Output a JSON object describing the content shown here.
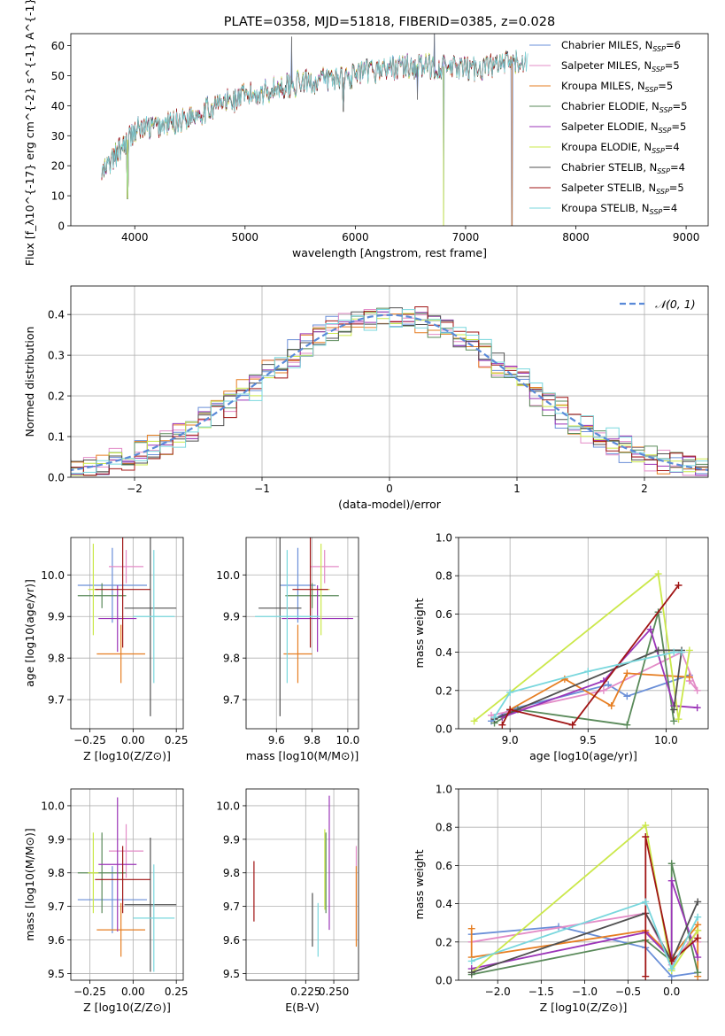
{
  "colors": {
    "Chabrier MILES": "#6a8fd8",
    "Salpeter MILES": "#e38cc7",
    "Kroupa MILES": "#e67e22",
    "Chabrier ELODIE": "#5a8a5a",
    "Salpeter ELODIE": "#9b35b8",
    "Kroupa ELODIE": "#cbe84a",
    "Chabrier STELIB": "#505050",
    "Salpeter STELIB": "#a01515",
    "Kroupa STELIB": "#79d7dd"
  },
  "chart_data": [
    {
      "id": "spectrum",
      "type": "line",
      "title": "PLATE=0358, MJD=51818, FIBERID=0385, z=0.028",
      "xlabel": "wavelength [Angstrom, rest frame]",
      "ylabel": "Flux [f_λ10^{-17} erg cm^{-2} s^{-1} A^{-1}]",
      "xlim": [
        3420,
        9200
      ],
      "ylim": [
        0,
        64
      ],
      "xticks": [
        4000,
        5000,
        6000,
        7000,
        8000,
        9000
      ],
      "yticks": [
        0,
        10,
        20,
        30,
        40,
        50,
        60
      ],
      "grid": false,
      "legend_position": "upper-right",
      "legend": [
        {
          "model": "Chabrier MILES",
          "nssp": "6"
        },
        {
          "model": "Salpeter MILES",
          "nssp": "5"
        },
        {
          "model": "Kroupa MILES",
          "nssp": "5"
        },
        {
          "model": "Chabrier ELODIE",
          "nssp": "5"
        },
        {
          "model": "Salpeter ELODIE",
          "nssp": "5"
        },
        {
          "model": "Kroupa ELODIE",
          "nssp": "4"
        },
        {
          "model": "Chabrier STELIB",
          "nssp": "4"
        },
        {
          "model": "Salpeter STELIB",
          "nssp": "5"
        },
        {
          "model": "Kroupa STELIB",
          "nssp": "4"
        }
      ],
      "continuum": {
        "wavelength": [
          3700,
          3800,
          3900,
          4000,
          4200,
          4400,
          4600,
          4800,
          5000,
          5200,
          5400,
          5600,
          5800,
          6000,
          6200,
          6400,
          6600,
          6800,
          7000,
          7200,
          7400,
          7600
        ],
        "flux": [
          17,
          22,
          27,
          32,
          33,
          35,
          38,
          41,
          43,
          45,
          47,
          48,
          49,
          50,
          52,
          53,
          53,
          53,
          52,
          53,
          54,
          55
        ]
      },
      "features": [
        {
          "wavelength": 3934,
          "flux": 9
        },
        {
          "wavelength": 5423,
          "flux": 63
        },
        {
          "wavelength": 5893,
          "flux": 38
        },
        {
          "wavelength": 6563,
          "flux": 42
        },
        {
          "wavelength": 6717,
          "flux": 64
        },
        {
          "wavelength": 6800,
          "flux": 0
        },
        {
          "wavelength": 7420,
          "flux": 0
        }
      ]
    },
    {
      "id": "residuals",
      "type": "line",
      "xlabel": "(data-model)/error",
      "ylabel": "Normed distribution",
      "xlim": [
        -2.5,
        2.5
      ],
      "ylim": [
        0,
        0.47
      ],
      "xticks": [
        -2,
        -1,
        0,
        1,
        2
      ],
      "yticks": [
        0.0,
        0.1,
        0.2,
        0.3,
        0.4
      ],
      "grid": true,
      "legend_position": "upper-right",
      "reference": {
        "label": "𝒩(0, 1)",
        "mean": 0,
        "sigma": 1,
        "color": "#5a8ad8"
      },
      "bin_width": 0.1
    },
    {
      "id": "age-vs-Z",
      "type": "scatter",
      "xlabel": "Z [log10(Z/Z⊙)]",
      "ylabel": "age [log10(age/yr)]",
      "xlim": [
        -0.36,
        0.29
      ],
      "ylim": [
        9.63,
        10.09
      ],
      "xticks": [
        -0.25,
        0.0,
        0.25
      ],
      "yticks": [
        9.7,
        9.8,
        9.9,
        10.0
      ],
      "grid": true,
      "points": [
        {
          "model": "Chabrier MILES",
          "x": -0.12,
          "xerr": 0.2,
          "y": 9.975,
          "yerr": 0.09
        },
        {
          "model": "Salpeter MILES",
          "x": -0.04,
          "xerr": 0.1,
          "y": 10.02,
          "yerr": 0.04
        },
        {
          "model": "Kroupa MILES",
          "x": -0.07,
          "xerr": 0.14,
          "y": 9.81,
          "yerr": 0.07
        },
        {
          "model": "Chabrier ELODIE",
          "x": -0.18,
          "xerr": 0.14,
          "y": 9.95,
          "yerr": 0.03
        },
        {
          "model": "Salpeter ELODIE",
          "x": -0.09,
          "xerr": 0.11,
          "y": 9.895,
          "yerr": 0.08
        },
        {
          "model": "Kroupa ELODIE",
          "x": -0.23,
          "xerr": 0.03,
          "y": 9.965,
          "yerr": 0.11
        },
        {
          "model": "Chabrier STELIB",
          "x": 0.1,
          "xerr": 0.15,
          "y": 9.92,
          "yerr": 0.26
        },
        {
          "model": "Salpeter STELIB",
          "x": -0.06,
          "xerr": 0.16,
          "y": 9.965,
          "yerr": 0.14
        },
        {
          "model": "Kroupa STELIB",
          "x": 0.12,
          "xerr": 0.12,
          "y": 9.9,
          "yerr": 0.16
        }
      ]
    },
    {
      "id": "age-vs-mass",
      "type": "scatter",
      "xlabel": "mass [log10(M/M⊙)]",
      "ylabel": "",
      "xlim": [
        9.43,
        10.06
      ],
      "ylim": [
        9.63,
        10.09
      ],
      "xticks": [
        9.6,
        9.8,
        10.0
      ],
      "yticks": [
        9.7,
        9.8,
        9.9,
        10.0
      ],
      "grid": true,
      "points": [
        {
          "model": "Chabrier MILES",
          "x": 9.72,
          "xerr": 0.1,
          "y": 9.975,
          "yerr": 0.09
        },
        {
          "model": "Salpeter MILES",
          "x": 9.87,
          "xerr": 0.08,
          "y": 10.02,
          "yerr": 0.04
        },
        {
          "model": "Kroupa MILES",
          "x": 9.72,
          "xerr": 0.08,
          "y": 9.81,
          "yerr": 0.07
        },
        {
          "model": "Chabrier ELODIE",
          "x": 9.8,
          "xerr": 0.15,
          "y": 9.95,
          "yerr": 0.03
        },
        {
          "model": "Salpeter ELODIE",
          "x": 9.83,
          "xerr": 0.2,
          "y": 9.895,
          "yerr": 0.08
        },
        {
          "model": "Kroupa ELODIE",
          "x": 9.85,
          "xerr": 0.05,
          "y": 9.965,
          "yerr": 0.11
        },
        {
          "model": "Chabrier STELIB",
          "x": 9.62,
          "xerr": 0.12,
          "y": 9.92,
          "yerr": 0.26
        },
        {
          "model": "Salpeter STELIB",
          "x": 9.79,
          "xerr": 0.1,
          "y": 9.965,
          "yerr": 0.14
        },
        {
          "model": "Kroupa STELIB",
          "x": 9.66,
          "xerr": 0.18,
          "y": 9.9,
          "yerr": 0.16
        }
      ]
    },
    {
      "id": "weight-vs-age",
      "type": "line",
      "xlabel": "age [log10(age/yr)]",
      "ylabel": "mass weight",
      "xlim": [
        8.67,
        10.27
      ],
      "ylim": [
        0,
        1.0
      ],
      "xticks": [
        9.0,
        9.5,
        10.0
      ],
      "yticks": [
        0.0,
        0.2,
        0.4,
        0.6,
        0.8,
        1.0
      ],
      "grid": true,
      "series": [
        {
          "model": "Chabrier MILES",
          "x": [
            8.88,
            9.0,
            9.63,
            9.75,
            10.15
          ],
          "y": [
            0.04,
            0.1,
            0.23,
            0.17,
            0.28
          ]
        },
        {
          "model": "Salpeter MILES",
          "x": [
            8.88,
            9.6,
            10.1,
            10.2,
            10.15
          ],
          "y": [
            0.07,
            0.2,
            0.4,
            0.2,
            0.25
          ]
        },
        {
          "model": "Kroupa MILES",
          "x": [
            9.0,
            9.35,
            9.65,
            9.75,
            10.15
          ],
          "y": [
            0.1,
            0.26,
            0.12,
            0.29,
            0.27
          ]
        },
        {
          "model": "Chabrier ELODIE",
          "x": [
            8.9,
            9.05,
            9.75,
            9.95,
            10.05
          ],
          "y": [
            0.03,
            0.1,
            0.02,
            0.61,
            0.04
          ]
        },
        {
          "model": "Salpeter ELODIE",
          "x": [
            8.95,
            9.6,
            9.9,
            10.05,
            10.2
          ],
          "y": [
            0.06,
            0.25,
            0.52,
            0.12,
            0.11
          ]
        },
        {
          "model": "Kroupa ELODIE",
          "x": [
            8.77,
            9.95,
            10.08,
            10.15
          ],
          "y": [
            0.04,
            0.81,
            0.05,
            0.41
          ]
        },
        {
          "model": "Chabrier STELIB",
          "x": [
            8.9,
            9.95,
            10.1,
            10.05
          ],
          "y": [
            0.05,
            0.41,
            0.41,
            0.1
          ]
        },
        {
          "model": "Salpeter STELIB",
          "x": [
            8.95,
            9.0,
            9.4,
            10.08
          ],
          "y": [
            0.02,
            0.1,
            0.02,
            0.75
          ]
        },
        {
          "model": "Kroupa STELIB",
          "x": [
            8.9,
            9.0,
            9.5,
            10.05,
            10.1
          ],
          "y": [
            0.06,
            0.19,
            0.3,
            0.4,
            0.4
          ]
        }
      ]
    },
    {
      "id": "mass-vs-Z",
      "type": "scatter",
      "xlabel": "Z [log10(Z/Z⊙)]",
      "ylabel": "mass [log10(M/M⊙)]",
      "xlim": [
        -0.36,
        0.29
      ],
      "ylim": [
        9.48,
        10.05
      ],
      "xticks": [
        -0.25,
        0.0,
        0.25
      ],
      "yticks": [
        9.5,
        9.6,
        9.7,
        9.8,
        9.9,
        10.0
      ],
      "grid": true,
      "points": [
        {
          "model": "Chabrier MILES",
          "x": -0.12,
          "xerr": 0.2,
          "y": 9.72,
          "yerr": 0.1
        },
        {
          "model": "Salpeter MILES",
          "x": -0.04,
          "xerr": 0.1,
          "y": 9.865,
          "yerr": 0.08
        },
        {
          "model": "Kroupa MILES",
          "x": -0.07,
          "xerr": 0.14,
          "y": 9.63,
          "yerr": 0.08
        },
        {
          "model": "Chabrier ELODIE",
          "x": -0.18,
          "xerr": 0.14,
          "y": 9.8,
          "yerr": 0.12
        },
        {
          "model": "Salpeter ELODIE",
          "x": -0.09,
          "xerr": 0.11,
          "y": 9.825,
          "yerr": 0.2
        },
        {
          "model": "Kroupa ELODIE",
          "x": -0.23,
          "xerr": 0.03,
          "y": 9.8,
          "yerr": 0.12
        },
        {
          "model": "Chabrier STELIB",
          "x": 0.1,
          "xerr": 0.15,
          "y": 9.705,
          "yerr": 0.2
        },
        {
          "model": "Salpeter STELIB",
          "x": -0.06,
          "xerr": 0.16,
          "y": 9.78,
          "yerr": 0.1
        },
        {
          "model": "Kroupa STELIB",
          "x": 0.12,
          "xerr": 0.12,
          "y": 9.665,
          "yerr": 0.16
        }
      ]
    },
    {
      "id": "mass-vs-EBV",
      "type": "scatter",
      "xlabel": "E(B-V)",
      "ylabel": "",
      "xlim": [
        0.172,
        0.272
      ],
      "ylim": [
        9.48,
        10.05
      ],
      "xticks": [
        0.225,
        0.25
      ],
      "xticklabels": [
        "0.225",
        "0.250"
      ],
      "yticks": [
        9.5,
        9.6,
        9.7,
        9.8,
        9.9,
        10.0
      ],
      "grid": true,
      "points": [
        {
          "model": "Salpeter MILES",
          "x": 0.27,
          "y": 9.74,
          "yerr": 0.14
        },
        {
          "model": "Kroupa MILES",
          "x": 0.27,
          "y": 9.7,
          "yerr": 0.12
        },
        {
          "model": "Chabrier ELODIE",
          "x": 0.243,
          "y": 9.8,
          "yerr": 0.12
        },
        {
          "model": "Salpeter ELODIE",
          "x": 0.246,
          "y": 9.83,
          "yerr": 0.2
        },
        {
          "model": "Kroupa ELODIE",
          "x": 0.242,
          "y": 9.81,
          "yerr": 0.12
        },
        {
          "model": "Chabrier STELIB",
          "x": 0.231,
          "y": 9.66,
          "yerr": 0.08
        },
        {
          "model": "Salpeter STELIB",
          "x": 0.179,
          "y": 9.745,
          "yerr": 0.09
        },
        {
          "model": "Kroupa STELIB",
          "x": 0.236,
          "y": 9.63,
          "yerr": 0.08
        }
      ]
    },
    {
      "id": "weight-vs-Z",
      "type": "line",
      "xlabel": "Z [log10(Z/Z⊙)]",
      "ylabel": "mass weight",
      "xlim": [
        -2.45,
        0.42
      ],
      "ylim": [
        0,
        1.0
      ],
      "xticks": [
        -2.0,
        -1.5,
        -1.0,
        -0.5,
        0.0
      ],
      "yticks": [
        0.0,
        0.2,
        0.4,
        0.6,
        0.8,
        1.0
      ],
      "grid": true,
      "series": [
        {
          "model": "Chabrier MILES",
          "x": [
            -2.3,
            -1.3,
            -0.3,
            0.0,
            0.3
          ],
          "y": [
            0.24,
            0.28,
            0.17,
            0.02,
            0.04
          ]
        },
        {
          "model": "Salpeter MILES",
          "x": [
            -2.3,
            -0.3,
            0.0,
            0.3,
            0.3
          ],
          "y": [
            0.2,
            0.35,
            0.08,
            0.26,
            0.2
          ]
        },
        {
          "model": "Kroupa MILES",
          "x": [
            -2.3,
            -2.3,
            -0.3,
            0.0,
            0.3,
            0.3
          ],
          "y": [
            0.27,
            0.12,
            0.26,
            0.12,
            0.29,
            0.02
          ]
        },
        {
          "model": "Chabrier ELODIE",
          "x": [
            -2.3,
            -0.3,
            0.0,
            0.0,
            0.3
          ],
          "y": [
            0.03,
            0.21,
            0.1,
            0.61,
            0.04
          ]
        },
        {
          "model": "Salpeter ELODIE",
          "x": [
            -2.3,
            -0.3,
            0.0,
            0.0,
            0.3
          ],
          "y": [
            0.06,
            0.25,
            0.11,
            0.52,
            0.12
          ]
        },
        {
          "model": "Kroupa ELODIE",
          "x": [
            -2.3,
            -0.3,
            0.0,
            0.3
          ],
          "y": [
            0.04,
            0.81,
            0.05,
            0.26
          ]
        },
        {
          "model": "Chabrier STELIB",
          "x": [
            -2.3,
            -0.3,
            0.0,
            0.3
          ],
          "y": [
            0.04,
            0.35,
            0.1,
            0.41
          ]
        },
        {
          "model": "Salpeter STELIB",
          "x": [
            -0.3,
            -0.3,
            0.0,
            0.3
          ],
          "y": [
            0.02,
            0.75,
            0.1,
            0.22
          ]
        },
        {
          "model": "Kroupa STELIB",
          "x": [
            -2.3,
            -0.3,
            0.0,
            0.3
          ],
          "y": [
            0.1,
            0.41,
            0.06,
            0.33
          ]
        }
      ]
    }
  ]
}
